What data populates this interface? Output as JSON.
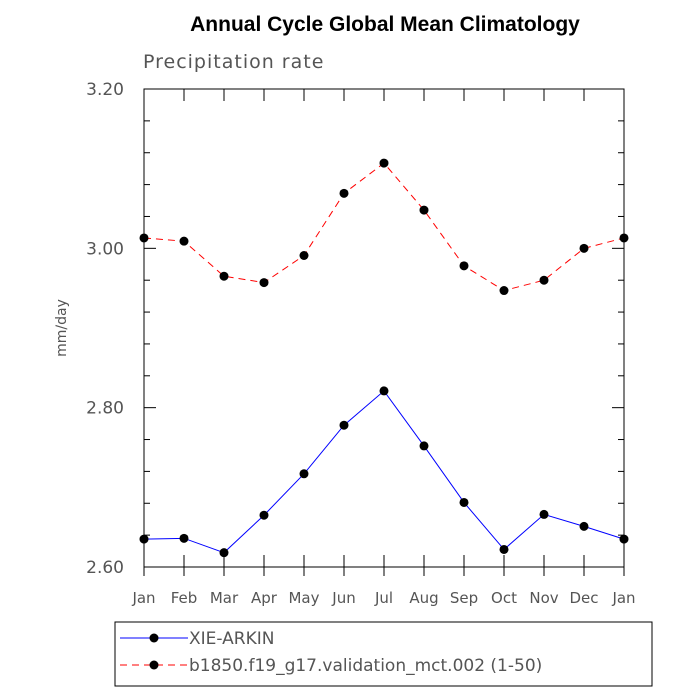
{
  "chart_data": {
    "type": "line",
    "title": "Annual Cycle Global Mean Climatology",
    "subtitle": "Precipitation rate",
    "ylabel": "mm/day",
    "xlabel": "",
    "categories": [
      "Jan",
      "Feb",
      "Mar",
      "Apr",
      "May",
      "Jun",
      "Jul",
      "Aug",
      "Sep",
      "Oct",
      "Nov",
      "Dec",
      "Jan"
    ],
    "ylim": [
      2.6,
      3.2
    ],
    "yticks": [
      2.6,
      2.8,
      3.0,
      3.2
    ],
    "ytick_labels": [
      "2.60",
      "2.80",
      "3.00",
      "3.20"
    ],
    "legend_position": "bottom",
    "series": [
      {
        "name": "XIE-ARKIN",
        "color": "#0000ff",
        "dash": "solid",
        "values": [
          2.635,
          2.636,
          2.618,
          2.665,
          2.717,
          2.778,
          2.821,
          2.752,
          2.681,
          2.622,
          2.666,
          2.651,
          2.635
        ]
      },
      {
        "name": "b1850.f19_g17.validation_mct.002 (1-50)",
        "color": "#ff0000",
        "dash": "dashed",
        "values": [
          3.013,
          3.009,
          2.965,
          2.957,
          2.991,
          3.069,
          3.107,
          3.048,
          2.978,
          2.947,
          2.96,
          3.0,
          3.013
        ]
      }
    ]
  }
}
